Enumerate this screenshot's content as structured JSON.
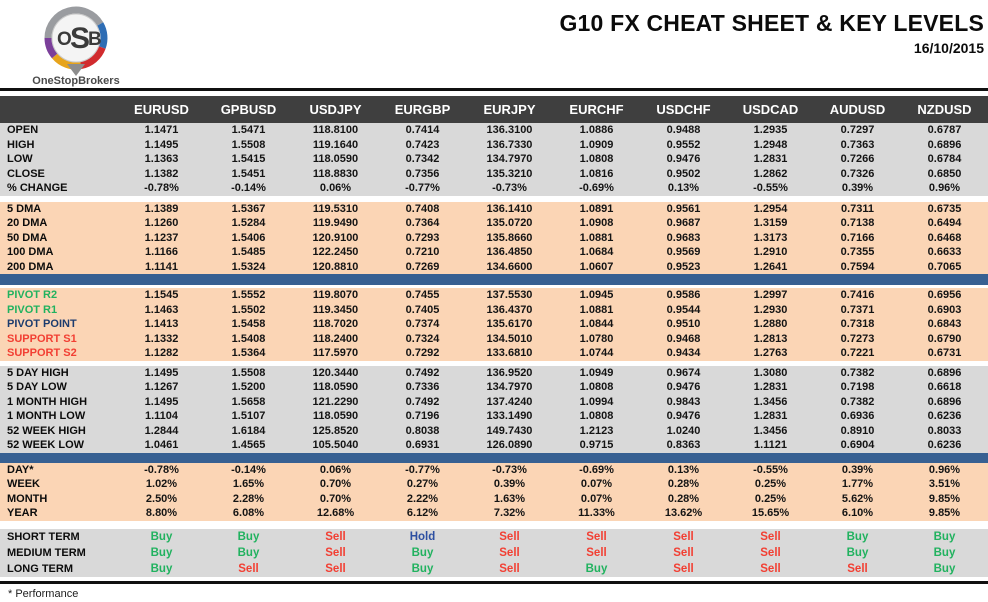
{
  "header": {
    "logo_text": "OSB",
    "logo_subtext": "OneStopBrokers",
    "title": "G10 FX CHEAT SHEET & KEY LEVELS",
    "date": "16/10/2015"
  },
  "footer": {
    "note": "* Performance"
  },
  "colors": {
    "header-bg": "#3f3f3f",
    "band-gray": "#d9d9d9",
    "band-peach": "#fbd5b5",
    "divider-blue": "#376092",
    "buy-green": "#21b25f",
    "sell-red": "#f23f33",
    "pivot-navy": "#1c3c6e",
    "hold-blue": "#2d4fa1"
  },
  "chart_data": {
    "type": "table",
    "title": "G10 FX CHEAT SHEET & KEY LEVELS",
    "columns": [
      "EURUSD",
      "GPBUSD",
      "USDJPY",
      "EURGBP",
      "EURJPY",
      "EURCHF",
      "USDCHF",
      "USDCAD",
      "AUDUSD",
      "NZDUSD"
    ],
    "sections": [
      {
        "name": "ohlc",
        "band": "gray",
        "rows": [
          {
            "label": "OPEN",
            "values": [
              "1.1471",
              "1.5471",
              "118.8100",
              "0.7414",
              "136.3100",
              "1.0886",
              "0.9488",
              "1.2935",
              "0.7297",
              "0.6787"
            ]
          },
          {
            "label": "HIGH",
            "values": [
              "1.1495",
              "1.5508",
              "119.1640",
              "0.7423",
              "136.7330",
              "1.0909",
              "0.9552",
              "1.2948",
              "0.7363",
              "0.6896"
            ]
          },
          {
            "label": "LOW",
            "values": [
              "1.1363",
              "1.5415",
              "118.0590",
              "0.7342",
              "134.7970",
              "1.0808",
              "0.9476",
              "1.2831",
              "0.7266",
              "0.6784"
            ]
          },
          {
            "label": "CLOSE",
            "values": [
              "1.1382",
              "1.5451",
              "118.8830",
              "0.7356",
              "135.3210",
              "1.0816",
              "0.9502",
              "1.2862",
              "0.7326",
              "0.6850"
            ]
          },
          {
            "label": "% CHANGE",
            "values": [
              "-0.78%",
              "-0.14%",
              "0.06%",
              "-0.77%",
              "-0.73%",
              "-0.69%",
              "0.13%",
              "-0.55%",
              "0.39%",
              "0.96%"
            ]
          }
        ]
      },
      {
        "name": "moving-averages",
        "band": "peach",
        "rows": [
          {
            "label": "5 DMA",
            "values": [
              "1.1389",
              "1.5367",
              "119.5310",
              "0.7408",
              "136.1410",
              "1.0891",
              "0.9561",
              "1.2954",
              "0.7311",
              "0.6735"
            ]
          },
          {
            "label": "20 DMA",
            "values": [
              "1.1260",
              "1.5284",
              "119.9490",
              "0.7364",
              "135.0720",
              "1.0908",
              "0.9687",
              "1.3159",
              "0.7138",
              "0.6494"
            ]
          },
          {
            "label": "50 DMA",
            "values": [
              "1.1237",
              "1.5406",
              "120.9100",
              "0.7293",
              "135.8660",
              "1.0881",
              "0.9683",
              "1.3173",
              "0.7166",
              "0.6468"
            ]
          },
          {
            "label": "100 DMA",
            "values": [
              "1.1166",
              "1.5485",
              "122.2450",
              "0.7210",
              "136.4850",
              "1.0684",
              "0.9569",
              "1.2910",
              "0.7355",
              "0.6633"
            ]
          },
          {
            "label": "200 DMA",
            "values": [
              "1.1141",
              "1.5324",
              "120.8810",
              "0.7269",
              "134.6600",
              "1.0607",
              "0.9523",
              "1.2641",
              "0.7594",
              "0.7065"
            ]
          }
        ]
      },
      {
        "name": "pivots",
        "band": "peach",
        "rows": [
          {
            "label": "PIVOT R2",
            "label_color": "green",
            "values": [
              "1.1545",
              "1.5552",
              "119.8070",
              "0.7455",
              "137.5530",
              "1.0945",
              "0.9586",
              "1.2997",
              "0.7416",
              "0.6956"
            ]
          },
          {
            "label": "PIVOT R1",
            "label_color": "green",
            "values": [
              "1.1463",
              "1.5502",
              "119.3450",
              "0.7405",
              "136.4370",
              "1.0881",
              "0.9544",
              "1.2930",
              "0.7371",
              "0.6903"
            ]
          },
          {
            "label": "PIVOT POINT",
            "label_color": "navy",
            "values": [
              "1.1413",
              "1.5458",
              "118.7020",
              "0.7374",
              "135.6170",
              "1.0844",
              "0.9510",
              "1.2880",
              "0.7318",
              "0.6843"
            ]
          },
          {
            "label": "SUPPORT S1",
            "label_color": "red",
            "values": [
              "1.1332",
              "1.5408",
              "118.2400",
              "0.7324",
              "134.5010",
              "1.0780",
              "0.9468",
              "1.2813",
              "0.7273",
              "0.6790"
            ]
          },
          {
            "label": "SUPPORT S2",
            "label_color": "red",
            "values": [
              "1.1282",
              "1.5364",
              "117.5970",
              "0.7292",
              "133.6810",
              "1.0744",
              "0.9434",
              "1.2763",
              "0.7221",
              "0.6731"
            ]
          }
        ]
      },
      {
        "name": "ranges",
        "band": "gray",
        "rows": [
          {
            "label": "5 DAY HIGH",
            "values": [
              "1.1495",
              "1.5508",
              "120.3440",
              "0.7492",
              "136.9520",
              "1.0949",
              "0.9674",
              "1.3080",
              "0.7382",
              "0.6896"
            ]
          },
          {
            "label": "5 DAY LOW",
            "values": [
              "1.1267",
              "1.5200",
              "118.0590",
              "0.7336",
              "134.7970",
              "1.0808",
              "0.9476",
              "1.2831",
              "0.7198",
              "0.6618"
            ]
          },
          {
            "label": "1 MONTH HIGH",
            "values": [
              "1.1495",
              "1.5658",
              "121.2290",
              "0.7492",
              "137.4240",
              "1.0994",
              "0.9843",
              "1.3456",
              "0.7382",
              "0.6896"
            ]
          },
          {
            "label": "1 MONTH LOW",
            "values": [
              "1.1104",
              "1.5107",
              "118.0590",
              "0.7196",
              "133.1490",
              "1.0808",
              "0.9476",
              "1.2831",
              "0.6936",
              "0.6236"
            ]
          },
          {
            "label": "52 WEEK HIGH",
            "values": [
              "1.2844",
              "1.6184",
              "125.8520",
              "0.8038",
              "149.7430",
              "1.2123",
              "1.0240",
              "1.3456",
              "0.8910",
              "0.8033"
            ]
          },
          {
            "label": "52 WEEK LOW",
            "values": [
              "1.0461",
              "1.4565",
              "105.5040",
              "0.6931",
              "126.0890",
              "0.9715",
              "0.8363",
              "1.1121",
              "0.6904",
              "0.6236"
            ]
          }
        ]
      },
      {
        "name": "performance",
        "band": "peach",
        "rows": [
          {
            "label": "DAY*",
            "values": [
              "-0.78%",
              "-0.14%",
              "0.06%",
              "-0.77%",
              "-0.73%",
              "-0.69%",
              "0.13%",
              "-0.55%",
              "0.39%",
              "0.96%"
            ]
          },
          {
            "label": "WEEK",
            "values": [
              "1.02%",
              "1.65%",
              "0.70%",
              "0.27%",
              "0.39%",
              "0.07%",
              "0.28%",
              "0.25%",
              "1.77%",
              "3.51%"
            ]
          },
          {
            "label": "MONTH",
            "values": [
              "2.50%",
              "2.28%",
              "0.70%",
              "2.22%",
              "1.63%",
              "0.07%",
              "0.28%",
              "0.25%",
              "5.62%",
              "9.85%"
            ]
          },
          {
            "label": "YEAR",
            "values": [
              "8.80%",
              "6.08%",
              "12.68%",
              "6.12%",
              "7.32%",
              "11.33%",
              "13.62%",
              "15.65%",
              "6.10%",
              "9.85%"
            ]
          }
        ]
      },
      {
        "name": "signals",
        "band": "gray",
        "rows": [
          {
            "label": "SHORT TERM",
            "values": [
              "Buy",
              "Buy",
              "Sell",
              "Hold",
              "Sell",
              "Sell",
              "Sell",
              "Sell",
              "Buy",
              "Buy"
            ]
          },
          {
            "label": "MEDIUM TERM",
            "values": [
              "Buy",
              "Buy",
              "Sell",
              "Buy",
              "Sell",
              "Sell",
              "Sell",
              "Sell",
              "Buy",
              "Buy"
            ]
          },
          {
            "label": "LONG TERM",
            "values": [
              "Buy",
              "Sell",
              "Sell",
              "Buy",
              "Sell",
              "Buy",
              "Sell",
              "Sell",
              "Sell",
              "Buy"
            ]
          }
        ]
      }
    ]
  }
}
